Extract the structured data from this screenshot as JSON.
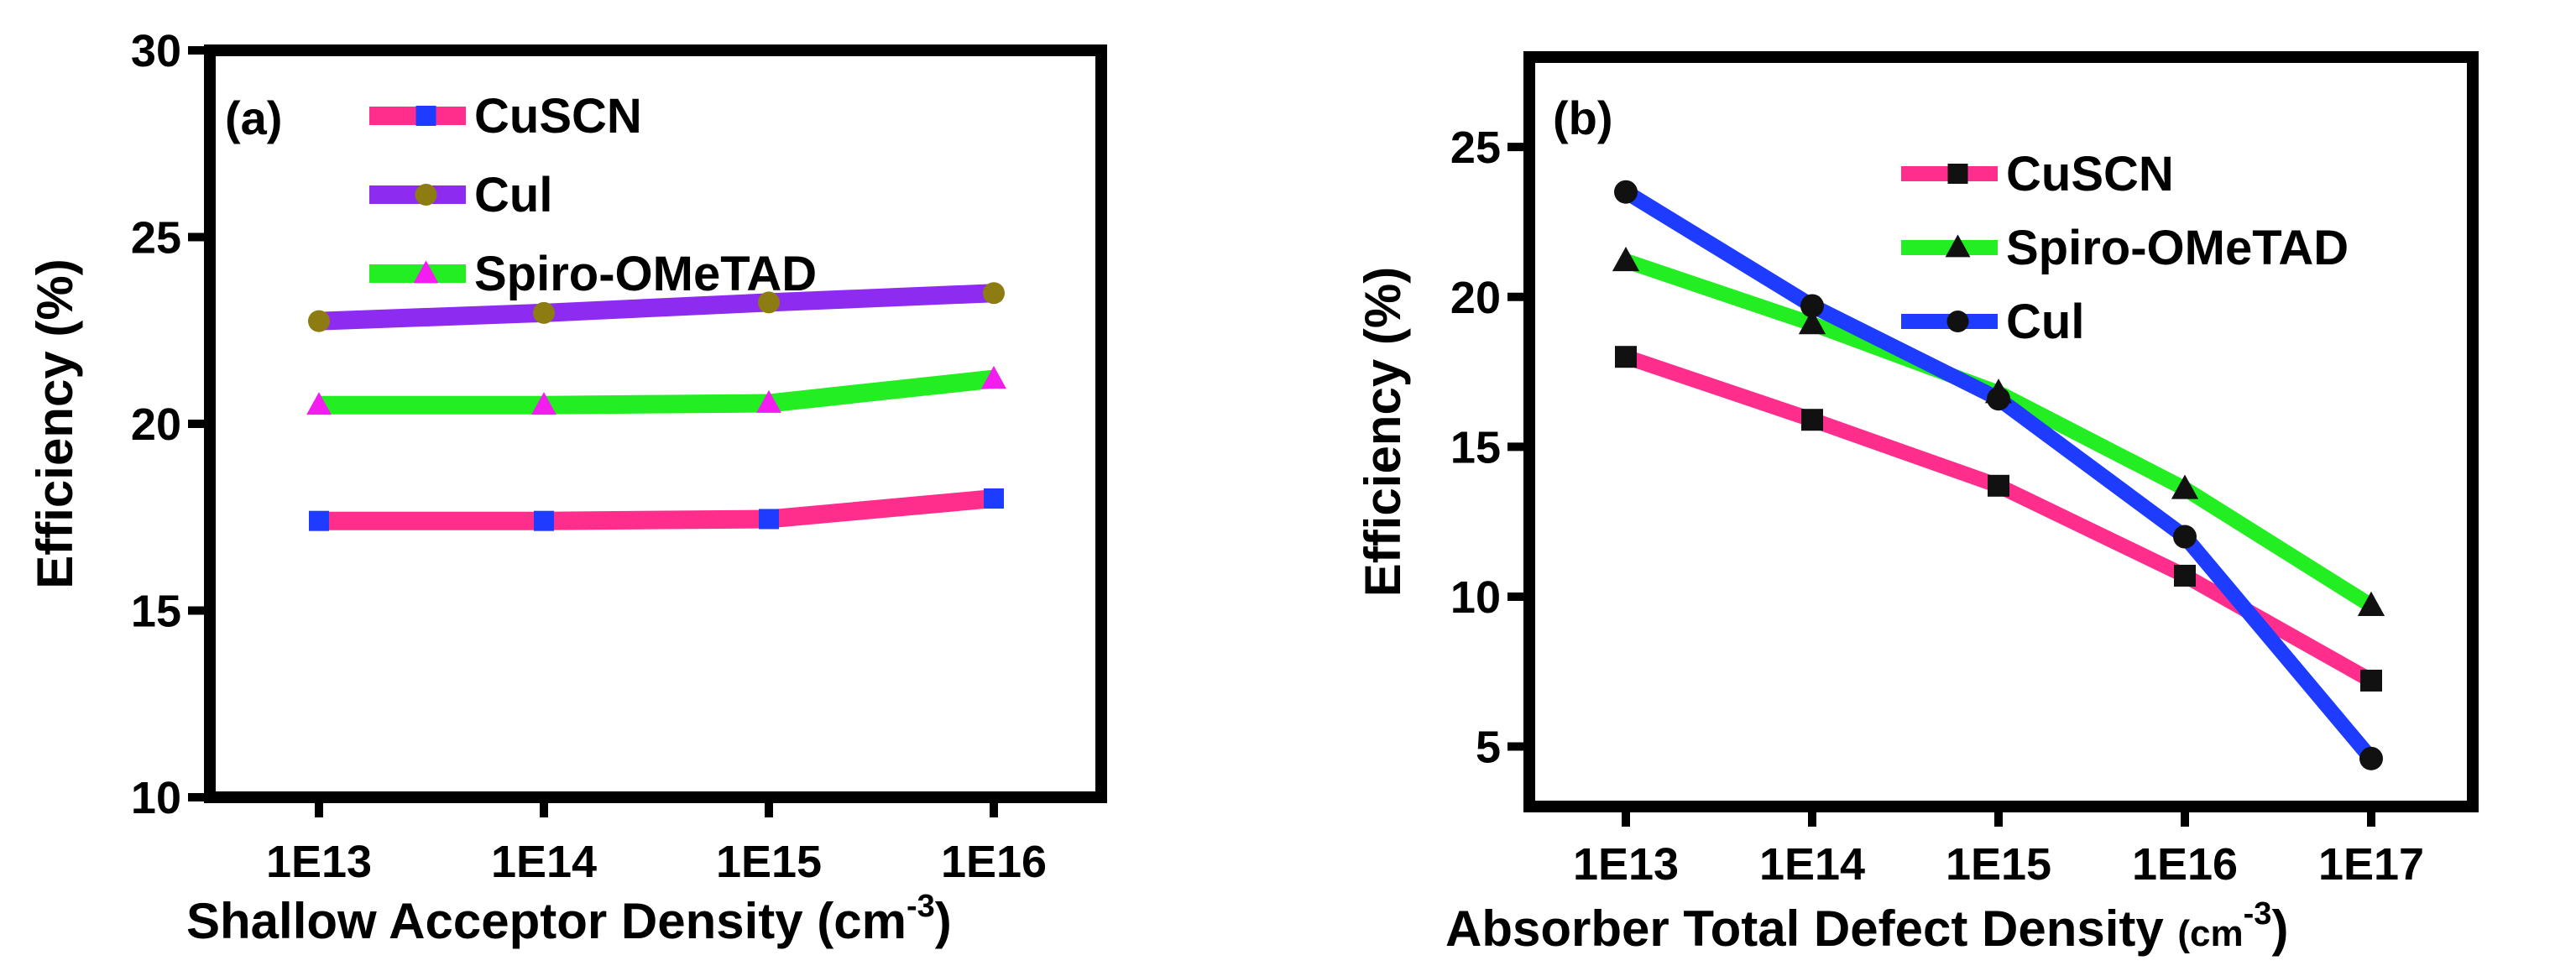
{
  "chart_data": [
    {
      "type": "line",
      "panel_label": "(a)",
      "categories": [
        "1E13",
        "1E14",
        "1E15",
        "1E16"
      ],
      "xlabel_main": "Shallow Acceptor Density (cm",
      "xlabel_sup": "-3",
      "xlabel_end": ")",
      "ylabel": "Efficiency (%)",
      "ylim": [
        10,
        30
      ],
      "yticks": [
        "10",
        "15",
        "20",
        "25",
        "30"
      ],
      "legend_position": "top-left",
      "series": [
        {
          "name": "CuSCN",
          "color": "#FF2E8C",
          "marker": "square",
          "marker_color": "#1E3CFF",
          "values": [
            17.4,
            17.4,
            17.45,
            18.0
          ]
        },
        {
          "name": "CuI",
          "label": "Cul",
          "color": "#8E2BF0",
          "marker": "circle",
          "marker_color": "#8C7C12",
          "values": [
            22.75,
            22.97,
            23.25,
            23.5
          ]
        },
        {
          "name": "Spiro-OMeTAD",
          "color": "#22EE22",
          "marker": "triangle",
          "marker_color": "#F31DF0",
          "values": [
            20.5,
            20.5,
            20.55,
            21.2
          ]
        }
      ]
    },
    {
      "type": "line",
      "panel_label": "(b)",
      "categories": [
        "1E13",
        "1E14",
        "1E15",
        "1E16",
        "1E17"
      ],
      "xlabel_main": "Absorber Total Defect Density ",
      "xlabel_unit": "(cm",
      "xlabel_sup": "-3",
      "xlabel_end": ")",
      "ylabel": "Efficiency (%)",
      "ylim": [
        3,
        28
      ],
      "yticks": [
        "5",
        "10",
        "15",
        "20",
        "25"
      ],
      "legend_position": "top-right",
      "series": [
        {
          "name": "CuSCN",
          "color": "#FF2E8C",
          "marker": "square",
          "marker_color": "#111111",
          "values": [
            18.0,
            15.9,
            13.7,
            10.7,
            7.2
          ]
        },
        {
          "name": "Spiro-OMeTAD",
          "color": "#22EE22",
          "marker": "triangle",
          "marker_color": "#111111",
          "values": [
            21.2,
            19.1,
            16.8,
            13.6,
            9.7
          ]
        },
        {
          "name": "CuI",
          "label": "Cul",
          "color": "#1E3CFF",
          "marker": "circle",
          "marker_color": "#111111",
          "values": [
            23.5,
            19.7,
            16.6,
            12.0,
            4.6
          ]
        }
      ]
    }
  ]
}
